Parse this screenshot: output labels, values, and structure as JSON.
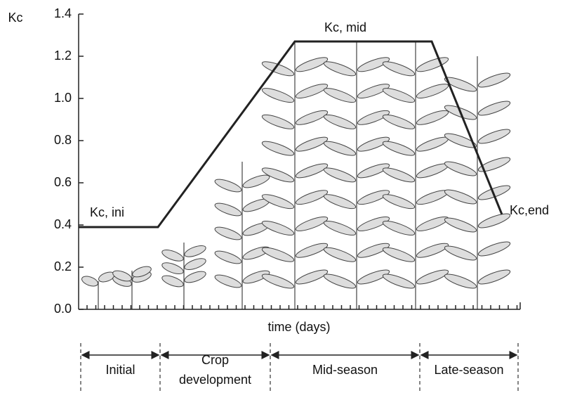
{
  "chart_data": {
    "type": "line",
    "y_label": "Kc",
    "x_label": "time (days)",
    "values": [
      0.39,
      0.39,
      1.27,
      1.27,
      0.45
    ],
    "color": "#222222",
    "ylim": [
      0,
      1.4
    ],
    "yticks": [
      {
        "value": 0,
        "label": "0.0"
      },
      0.2,
      0.4,
      0.6,
      0.8,
      {
        "value": 1,
        "label": "1.0"
      },
      1.2,
      1.4
    ],
    "annotations": [
      "Kc, ini",
      "Kc, mid",
      "Kc,end"
    ],
    "stages": [
      "Initial",
      "Crop development",
      "Mid-season",
      "Late-season"
    ]
  }
}
